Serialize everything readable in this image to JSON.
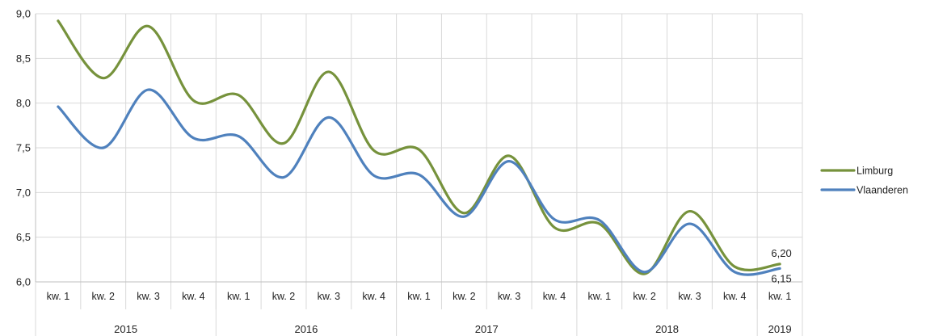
{
  "chart_data": {
    "type": "line",
    "title": "",
    "xlabel": "",
    "ylabel": "",
    "ylim": [
      6.0,
      9.0
    ],
    "yticks": [
      "6,0",
      "6,5",
      "7,0",
      "7,5",
      "8,0",
      "8,5",
      "9,0"
    ],
    "ytick_values": [
      6.0,
      6.5,
      7.0,
      7.5,
      8.0,
      8.5,
      9.0
    ],
    "categories": [
      "kw. 1",
      "kw. 2",
      "kw. 3",
      "kw. 4",
      "kw. 1",
      "kw. 2",
      "kw. 3",
      "kw. 4",
      "kw. 1",
      "kw. 2",
      "kw. 3",
      "kw. 4",
      "kw. 1",
      "kw. 2",
      "kw. 3",
      "kw. 4",
      "kw. 1"
    ],
    "year_groups": [
      {
        "label": "2015",
        "count": 4
      },
      {
        "label": "2016",
        "count": 4
      },
      {
        "label": "2017",
        "count": 4
      },
      {
        "label": "2018",
        "count": 4
      },
      {
        "label": "2019",
        "count": 1
      }
    ],
    "series": [
      {
        "name": "Limburg",
        "color": "#76923c",
        "values": [
          8.92,
          8.28,
          8.86,
          8.03,
          8.09,
          7.55,
          8.35,
          7.47,
          7.48,
          6.77,
          7.41,
          6.61,
          6.65,
          6.09,
          6.79,
          6.17,
          6.2
        ]
      },
      {
        "name": "Vlaanderen",
        "color": "#4f81bd",
        "values": [
          7.96,
          7.5,
          8.15,
          7.61,
          7.63,
          7.17,
          7.84,
          7.19,
          7.2,
          6.73,
          7.35,
          6.7,
          6.69,
          6.11,
          6.65,
          6.11,
          6.15
        ]
      }
    ],
    "data_labels": [
      {
        "series": "Limburg",
        "index": 16,
        "text": "6,20"
      },
      {
        "series": "Vlaanderen",
        "index": 16,
        "text": "6,15"
      }
    ],
    "grid": true,
    "legend_position": "right"
  }
}
